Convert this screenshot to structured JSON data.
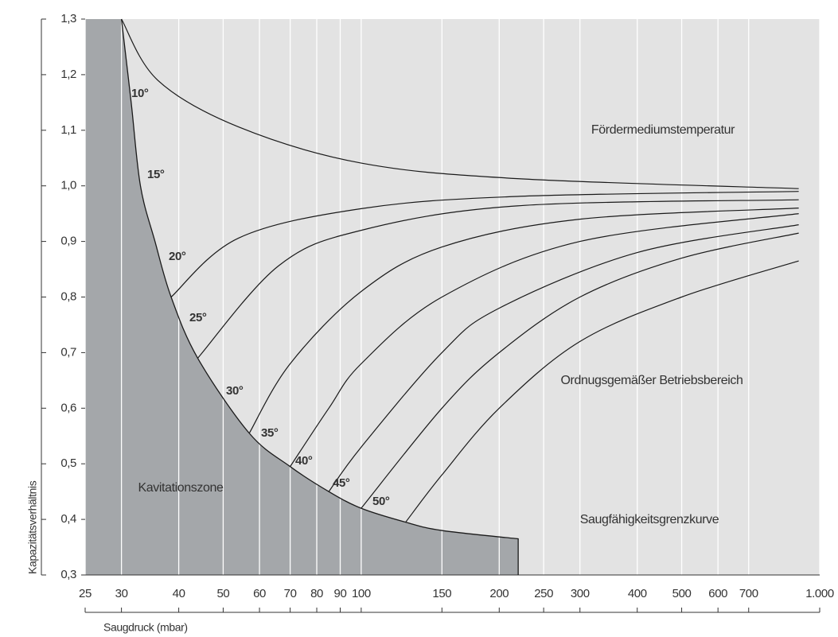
{
  "chart_data": {
    "type": "line",
    "x_label": "Saugdruck (mbar)",
    "y_label": "Kapazitätsverhältnis",
    "log_x": true,
    "xlim": [
      25,
      1000
    ],
    "ylim": [
      0.3,
      1.3
    ],
    "xticks": [
      25,
      30,
      40,
      50,
      60,
      70,
      80,
      90,
      100,
      150,
      200,
      250,
      300,
      400,
      500,
      600,
      700,
      {
        "value": 1000,
        "label": "1.000"
      }
    ],
    "yticks": [
      {
        "value": 0.3,
        "label": "0,3"
      },
      {
        "value": 0.4,
        "label": "0,4"
      },
      {
        "value": 0.5,
        "label": "0,5"
      },
      {
        "value": 0.6,
        "label": "0,6"
      },
      {
        "value": 0.7,
        "label": "0,7"
      },
      {
        "value": 0.8,
        "label": "0,8"
      },
      {
        "value": 0.9,
        "label": "0,9"
      },
      {
        "value": 1.0,
        "label": "1,0"
      },
      {
        "value": 1.1,
        "label": "1,1"
      },
      {
        "value": 1.2,
        "label": "1,2"
      },
      {
        "value": 1.3,
        "label": "1,3"
      }
    ],
    "background": "#e3e3e3",
    "zone_color": "#a4a7aa",
    "line_color": "#1a1a1a",
    "boundary": {
      "x": [
        30,
        31.5,
        33,
        35.5,
        38.5,
        44,
        57,
        70,
        85,
        100,
        125,
        150,
        220,
        220
      ],
      "values": [
        1.3,
        1.15,
        1.0,
        0.9,
        0.8,
        0.69,
        0.555,
        0.495,
        0.45,
        0.42,
        0.395,
        0.38,
        0.365,
        0.3
      ]
    },
    "series": [
      {
        "x": [
          30,
          36,
          54,
          100,
          219,
          900
        ],
        "values": [
          1.3,
          1.19,
          1.106,
          1.041,
          1.013,
          0.995
        ]
      },
      {
        "x": [
          38.5,
          54,
          100,
          219,
          900
        ],
        "values": [
          0.8,
          0.906,
          0.959,
          0.981,
          0.99
        ]
      },
      {
        "x": [
          44,
          66,
          100,
          219,
          900
        ],
        "values": [
          0.69,
          0.856,
          0.92,
          0.964,
          0.975
        ]
      },
      {
        "x": [
          57,
          70,
          100,
          150,
          300,
          900
        ],
        "values": [
          0.555,
          0.68,
          0.81,
          0.89,
          0.94,
          0.96
        ]
      },
      {
        "x": [
          70,
          85,
          100,
          150,
          300,
          900
        ],
        "values": [
          0.495,
          0.6,
          0.68,
          0.8,
          0.9,
          0.95
        ]
      },
      {
        "x": [
          85,
          100,
          150,
          200,
          400,
          900
        ],
        "values": [
          0.45,
          0.53,
          0.7,
          0.78,
          0.88,
          0.93
        ]
      },
      {
        "x": [
          100,
          150,
          200,
          300,
          500,
          900
        ],
        "values": [
          0.42,
          0.6,
          0.7,
          0.8,
          0.87,
          0.915
        ]
      },
      {
        "x": [
          125,
          150,
          200,
          300,
          500,
          900
        ],
        "values": [
          0.395,
          0.48,
          0.6,
          0.72,
          0.8,
          0.865
        ]
      }
    ],
    "annotations": [
      "10°",
      "15°",
      "20°",
      "25°",
      "30°",
      "35°",
      "40°",
      "45°",
      "50°"
    ],
    "regions": [
      "Fördermediumstemperatur",
      "Ordnugsgemäßer Betriebsbereich",
      "Kavitationszone",
      "Saugfähigkeitsgrenzkurve"
    ]
  }
}
